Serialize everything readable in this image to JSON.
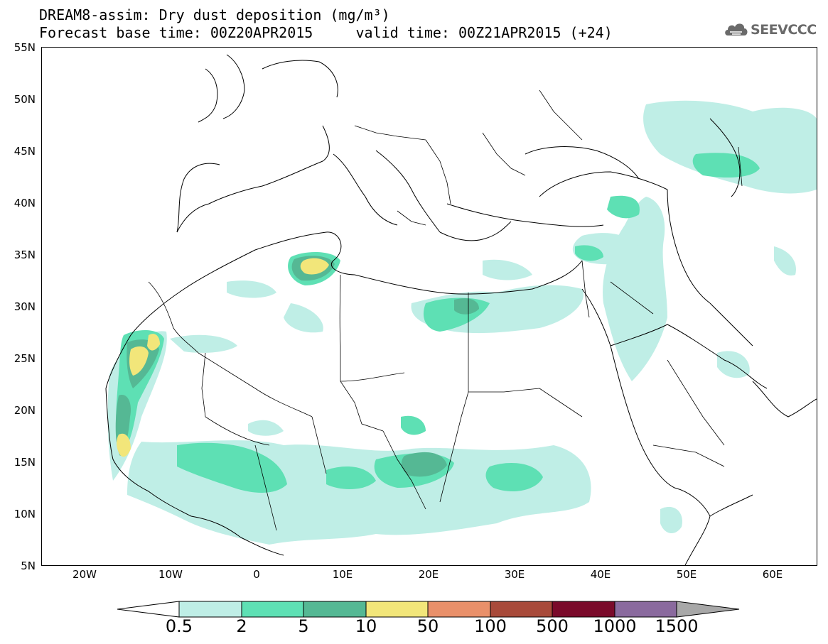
{
  "header": {
    "title_line1": "DREAM8-assim: Dry dust deposition (mg/m³)",
    "title_line2": "Forecast base time: 00Z20APR2015     valid time: 00Z21APR2015 (+24)",
    "logo_text": "SEEVCCC",
    "logo_icon": "cloud-icon"
  },
  "map": {
    "lat_labels": [
      "55N",
      "50N",
      "45N",
      "40N",
      "35N",
      "30N",
      "25N",
      "20N",
      "15N",
      "10N",
      "5N"
    ],
    "lon_labels": [
      "20W",
      "10W",
      "0",
      "10E",
      "20E",
      "30E",
      "40E",
      "50E",
      "60E"
    ],
    "lon_range": [
      -25,
      65
    ],
    "lat_range": [
      5,
      55
    ],
    "colors": {
      "water": "#ffffff",
      "border": "#000000"
    }
  },
  "legend": {
    "levels": [
      "0.5",
      "2",
      "5",
      "10",
      "50",
      "100",
      "500",
      "1000",
      "1500"
    ],
    "colors": [
      "#bfeee6",
      "#5ee0b4",
      "#55b894",
      "#f2e67a",
      "#e9906a",
      "#a84a3a",
      "#7a0a2a",
      "#8a6a9e",
      "#a8a8a8"
    ],
    "left_arrow_color": "#ffffff",
    "right_arrow_color": "#a8a8a8"
  }
}
